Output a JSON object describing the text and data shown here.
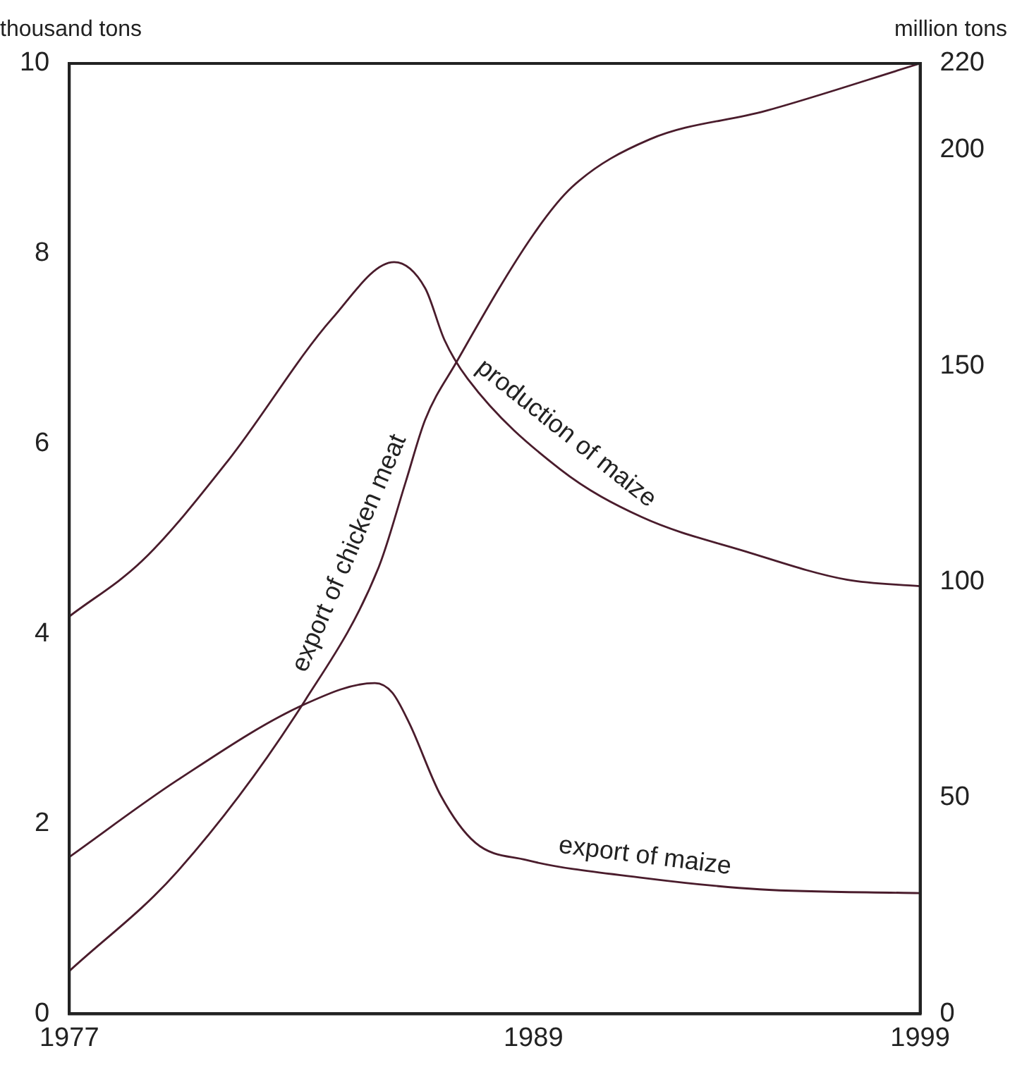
{
  "chart_data": {
    "type": "line",
    "ylabel": "thousand tons",
    "y2label": "million tons",
    "xlim": [
      1977,
      1999
    ],
    "xticks": [
      1977,
      1989,
      1999
    ],
    "ylim": [
      0,
      10
    ],
    "yticks": [
      0,
      2,
      4,
      6,
      8,
      10
    ],
    "y2lim": [
      0,
      220
    ],
    "y2ticks": [
      0,
      50,
      100,
      150,
      200,
      220
    ],
    "grid": false,
    "legend": false,
    "marker": "none",
    "line_style": "solid",
    "series": [
      {
        "name": "production of maize",
        "color": "#4a1c2c",
        "axis": "y2",
        "x": [
          1977,
          1978.9,
          1981.1,
          1983.8,
          1985.4,
          1986.2,
          1986.7,
          1987.3,
          1989.7,
          1991.8,
          1994.5,
          1997.1,
          1999
        ],
        "values": [
          92,
          105,
          128,
          161,
          174,
          168,
          156,
          147,
          126,
          115,
          107,
          100.5,
          99
        ]
      },
      {
        "name": "export of chicken meat",
        "color": "#4a1c2c",
        "x": [
          1977,
          1979.8,
          1983.1,
          1985,
          1985.7,
          1986.2,
          1987,
          1989,
          1990,
          1992,
          1995,
          1999
        ],
        "values": [
          0.45,
          1.5,
          3.3,
          4.7,
          5.6,
          6.25,
          6.85,
          8.2,
          8.7,
          9.2,
          9.5,
          10
        ]
      },
      {
        "name": "export of maize",
        "color": "#4a1c2c",
        "x": [
          1977,
          1979.8,
          1983.1,
          1984.9,
          1985.35,
          1985.8,
          1986.6,
          1987.5,
          1988.8,
          1991.85,
          1994.85,
          1999
        ],
        "values": [
          1.65,
          2.46,
          3.26,
          3.48,
          3.38,
          3.05,
          2.3,
          1.8,
          1.62,
          1.43,
          1.31,
          1.27
        ]
      }
    ]
  }
}
